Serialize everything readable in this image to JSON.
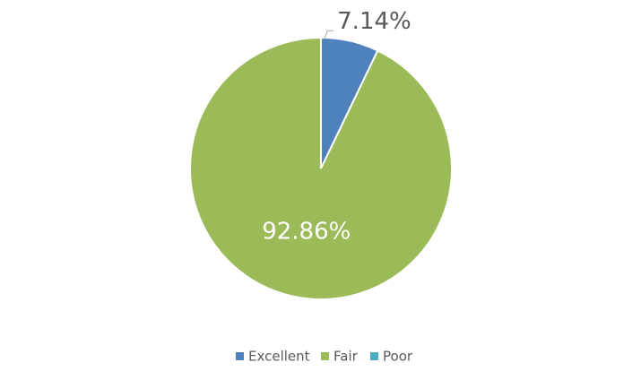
{
  "chart_data": {
    "type": "pie",
    "categories": [
      "Excellent",
      "Fair",
      "Poor"
    ],
    "values": [
      7.14,
      92.86,
      0
    ],
    "value_labels": [
      "7.14%",
      "92.86%",
      null
    ],
    "colors": [
      "#4f81bd",
      "#9bbb59",
      "#4bacc6"
    ],
    "legend": "bottom"
  }
}
